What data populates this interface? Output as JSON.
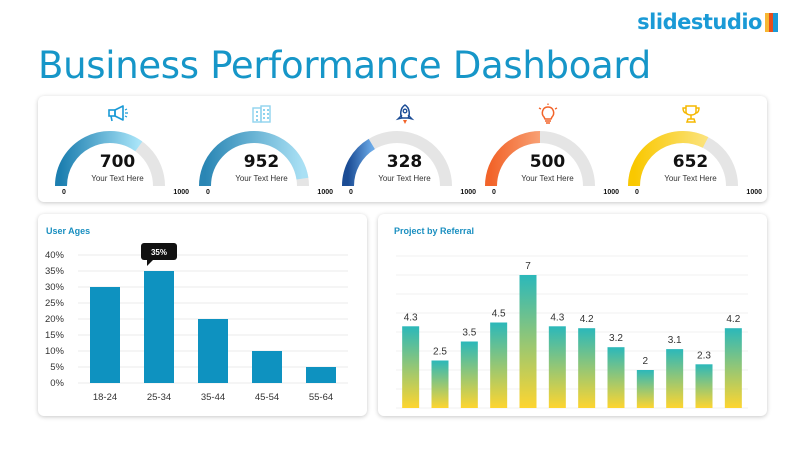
{
  "brand": {
    "logo_text": "slidestudio",
    "logo_colors": [
      "#f7b733",
      "#e94e1b",
      "#1a9ad6"
    ]
  },
  "page_title": "Business Performance Dashboard",
  "gauges": [
    {
      "icon": "megaphone-icon",
      "value": "700",
      "fraction": 0.7,
      "label": "Your Text Here",
      "min": "0",
      "max": "1000",
      "color_start": "#1d7fb0",
      "color_end": "#a8e4f8",
      "icon_color": "#1a9ad6"
    },
    {
      "icon": "building-icon",
      "value": "952",
      "fraction": 0.952,
      "label": "Your Text Here",
      "min": "0",
      "max": "1000",
      "color_start": "#2a86b4",
      "color_end": "#a9e0f4",
      "icon_color": "#8fd3ee"
    },
    {
      "icon": "rocket-icon",
      "value": "328",
      "fraction": 0.328,
      "label": "Your Text Here",
      "min": "0",
      "max": "1000",
      "color_start": "#1b4c95",
      "color_end": "#6aa8e6",
      "icon_color": "#1b4c95"
    },
    {
      "icon": "lightbulb-icon",
      "value": "500",
      "fraction": 0.5,
      "label": "Your Text Here",
      "min": "0",
      "max": "1000",
      "color_start": "#f2642a",
      "color_end": "#f8a074",
      "icon_color": "#f2642a"
    },
    {
      "icon": "trophy-icon",
      "value": "652",
      "fraction": 0.652,
      "label": "Your Text Here",
      "min": "0",
      "max": "1000",
      "color_start": "#f9c800",
      "color_end": "#fbe27a",
      "icon_color": "#f5b800"
    }
  ],
  "chart_data": [
    {
      "type": "bar",
      "title": "User Ages",
      "categories": [
        "18-24",
        "25-34",
        "35-44",
        "45-54",
        "55-64"
      ],
      "values": [
        30,
        35,
        20,
        10,
        5
      ],
      "ylim": [
        0,
        40
      ],
      "yticks": [
        "0%",
        "5%",
        "10%",
        "15%",
        "20%",
        "25%",
        "30%",
        "35%",
        "40%"
      ],
      "highlight": {
        "index": 1,
        "label": "35%"
      },
      "bar_color": "#0e92c0",
      "grid": true
    },
    {
      "type": "bar",
      "title": "Project by Referral",
      "values": [
        4.3,
        2.5,
        3.5,
        4.5,
        7,
        4.3,
        4.2,
        3.2,
        2,
        3.1,
        2.3,
        4.2
      ],
      "data_labels": [
        "4.3",
        "2.5",
        "3.5",
        "4.5",
        "7",
        "4.3",
        "4.2",
        "3.2",
        "2",
        "3.1",
        "2.3",
        "4.2"
      ],
      "ylim": [
        0,
        8
      ],
      "gradient": [
        "#2bb8ba",
        "#fed530"
      ],
      "grid": true
    }
  ]
}
